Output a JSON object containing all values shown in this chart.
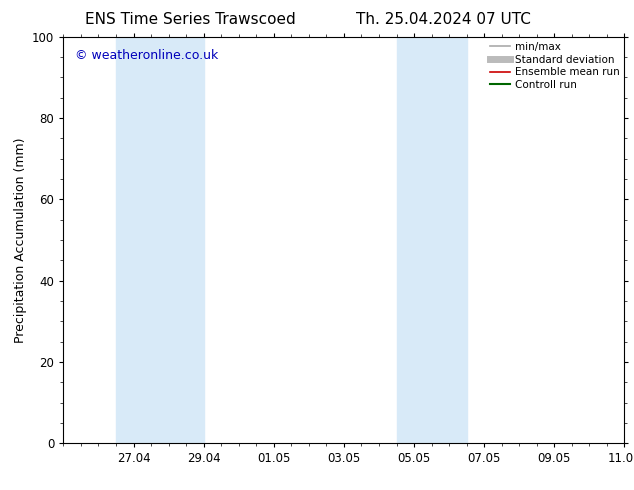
{
  "title_left": "ENS Time Series Trawscoed",
  "title_right": "Th. 25.04.2024 07 UTC",
  "ylabel": "Precipitation Accumulation (mm)",
  "watermark": "© weatheronline.co.uk",
  "ylim": [
    0,
    100
  ],
  "yticks": [
    0,
    20,
    40,
    60,
    80,
    100
  ],
  "xlim": [
    0,
    16
  ],
  "x_tick_labels": [
    "27.04",
    "29.04",
    "01.05",
    "03.05",
    "05.05",
    "07.05",
    "09.05",
    "11.05"
  ],
  "x_tick_positions": [
    2,
    4,
    6,
    8,
    10,
    12,
    14,
    16
  ],
  "shaded_bands": [
    {
      "x_start": 1.5,
      "x_end": 4.0,
      "color": "#d8eaf8",
      "alpha": 1.0
    },
    {
      "x_start": 9.5,
      "x_end": 11.5,
      "color": "#d8eaf8",
      "alpha": 1.0
    }
  ],
  "legend_items": [
    {
      "label": "min/max",
      "color": "#aaaaaa",
      "lw": 1.2
    },
    {
      "label": "Standard deviation",
      "color": "#bbbbbb",
      "lw": 5
    },
    {
      "label": "Ensemble mean run",
      "color": "#cc0000",
      "lw": 1.2
    },
    {
      "label": "Controll run",
      "color": "#006600",
      "lw": 1.5
    }
  ],
  "background_color": "#ffffff",
  "plot_bg_color": "#ffffff",
  "watermark_color": "#0000bb",
  "title_fontsize": 11,
  "ylabel_fontsize": 9,
  "tick_fontsize": 8.5,
  "watermark_fontsize": 9,
  "legend_fontsize": 7.5
}
